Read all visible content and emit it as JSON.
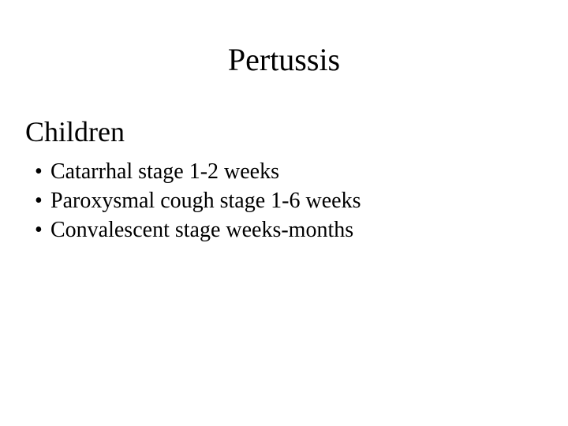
{
  "title": "Pertussis",
  "subtitle": "Children",
  "bullets": [
    "Catarrhal stage  1-2 weeks",
    "Paroxysmal cough stage 1-6 weeks",
    "Convalescent stage weeks-months"
  ],
  "colors": {
    "background": "#ffffff",
    "text": "#000000"
  },
  "typography": {
    "family": "Times New Roman",
    "title_size_pt": 40,
    "subtitle_size_pt": 36,
    "bullet_size_pt": 28
  }
}
